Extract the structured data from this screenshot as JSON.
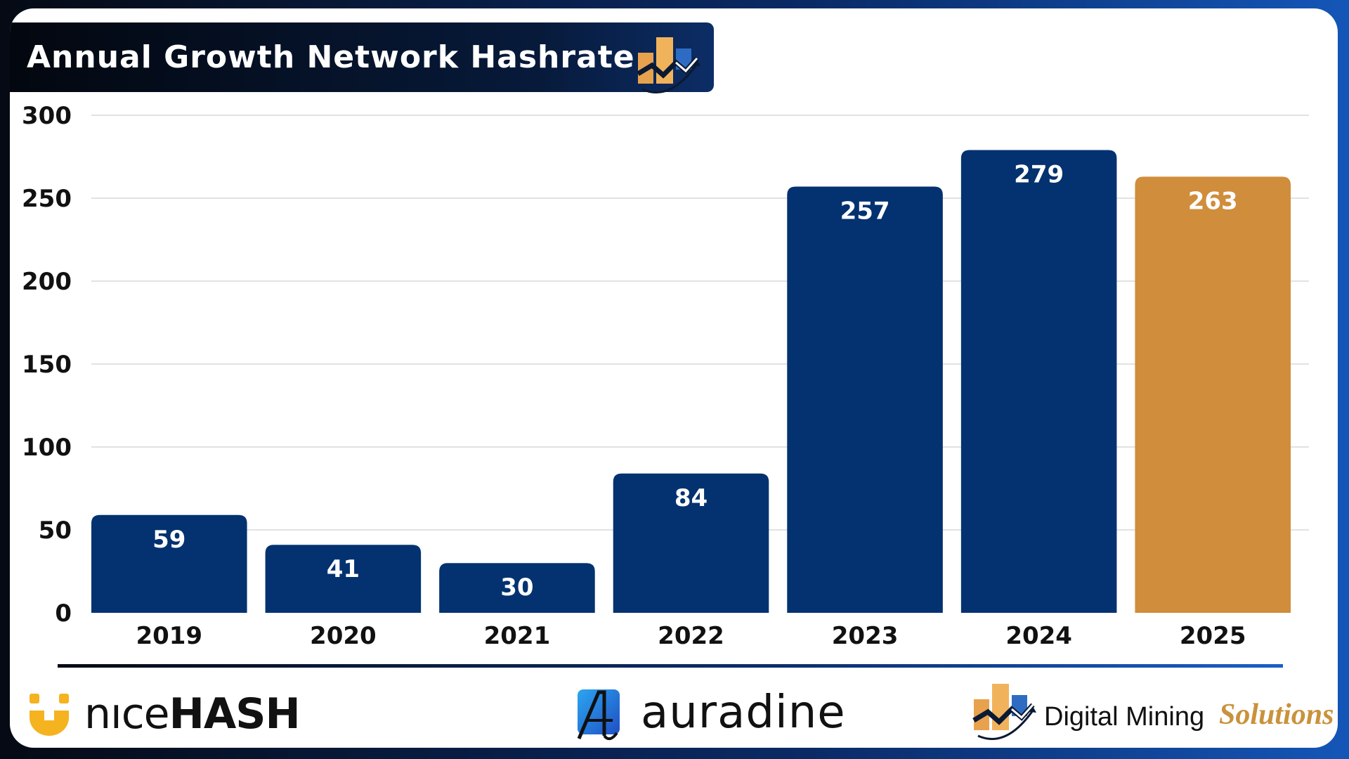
{
  "header": {
    "title": "Annual Growth Network Hashrate"
  },
  "chart_data": {
    "type": "bar",
    "title": "Annual Growth Network Hashrate",
    "xlabel": "",
    "ylabel": "",
    "categories": [
      "2019",
      "2020",
      "2021",
      "2022",
      "2023",
      "2024",
      "2025"
    ],
    "values": [
      59,
      41,
      30,
      84,
      257,
      279,
      263
    ],
    "data_labels": [
      "59",
      "41",
      "30",
      "84",
      "257",
      "279",
      "263"
    ],
    "ylim": [
      0,
      300
    ],
    "yticks": [
      "0",
      "50",
      "100",
      "150",
      "200",
      "250",
      "300"
    ],
    "grid": true,
    "legend": "none",
    "bar_colors": [
      "#043270",
      "#043270",
      "#043270",
      "#043270",
      "#043270",
      "#043270",
      "#d08d3b"
    ]
  },
  "colors": {
    "bar_primary": "#043270",
    "bar_highlight": "#d08d3b",
    "grid": "#d9d9d9",
    "accent_gold": "#c9923c"
  },
  "footer": {
    "nicehash": {
      "light": "nıce",
      "bold": "HASH"
    },
    "auradine": {
      "word": "auradine"
    },
    "digital_mining": {
      "main": "Digital Mining",
      "accent": "Solutions"
    }
  }
}
